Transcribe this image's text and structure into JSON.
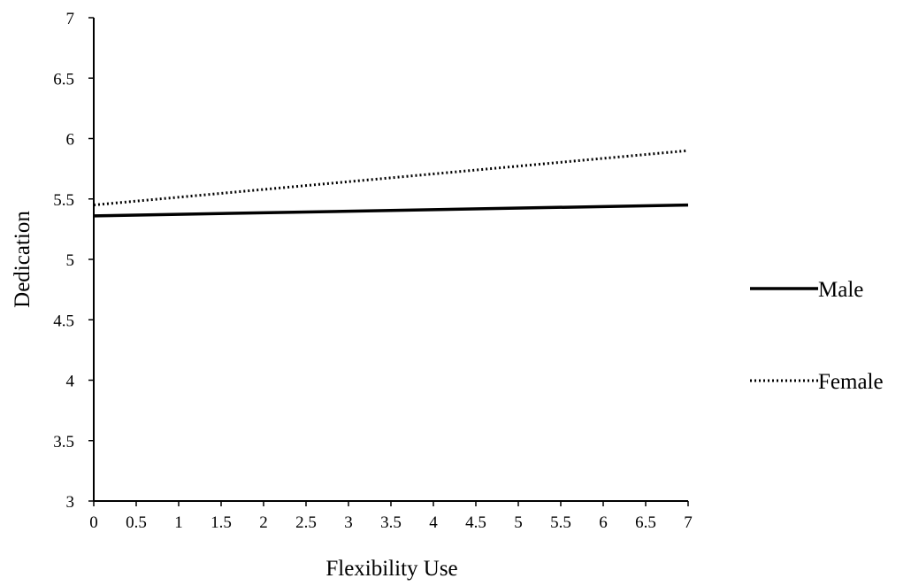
{
  "chart_data": {
    "type": "line",
    "xlabel": "Flexibility Use",
    "ylabel": "Dedication",
    "xlim": [
      0,
      7
    ],
    "ylim": [
      3,
      7
    ],
    "x_ticks": [
      "0",
      "0.5",
      "1",
      "1.5",
      "2",
      "2.5",
      "3",
      "3.5",
      "4",
      "4.5",
      "5",
      "5.5",
      "6",
      "6.5",
      "7"
    ],
    "y_ticks": [
      "3",
      "3.5",
      "4",
      "4.5",
      "5",
      "5.5",
      "6",
      "6.5",
      "7"
    ],
    "grid": false,
    "legend_position": "right",
    "series": [
      {
        "name": "Male",
        "style": "solid",
        "color": "#000000",
        "x": [
          0,
          7
        ],
        "y": [
          5.36,
          5.45
        ]
      },
      {
        "name": "Female",
        "style": "dotted",
        "color": "#000000",
        "x": [
          0,
          7
        ],
        "y": [
          5.45,
          5.9
        ]
      }
    ]
  }
}
